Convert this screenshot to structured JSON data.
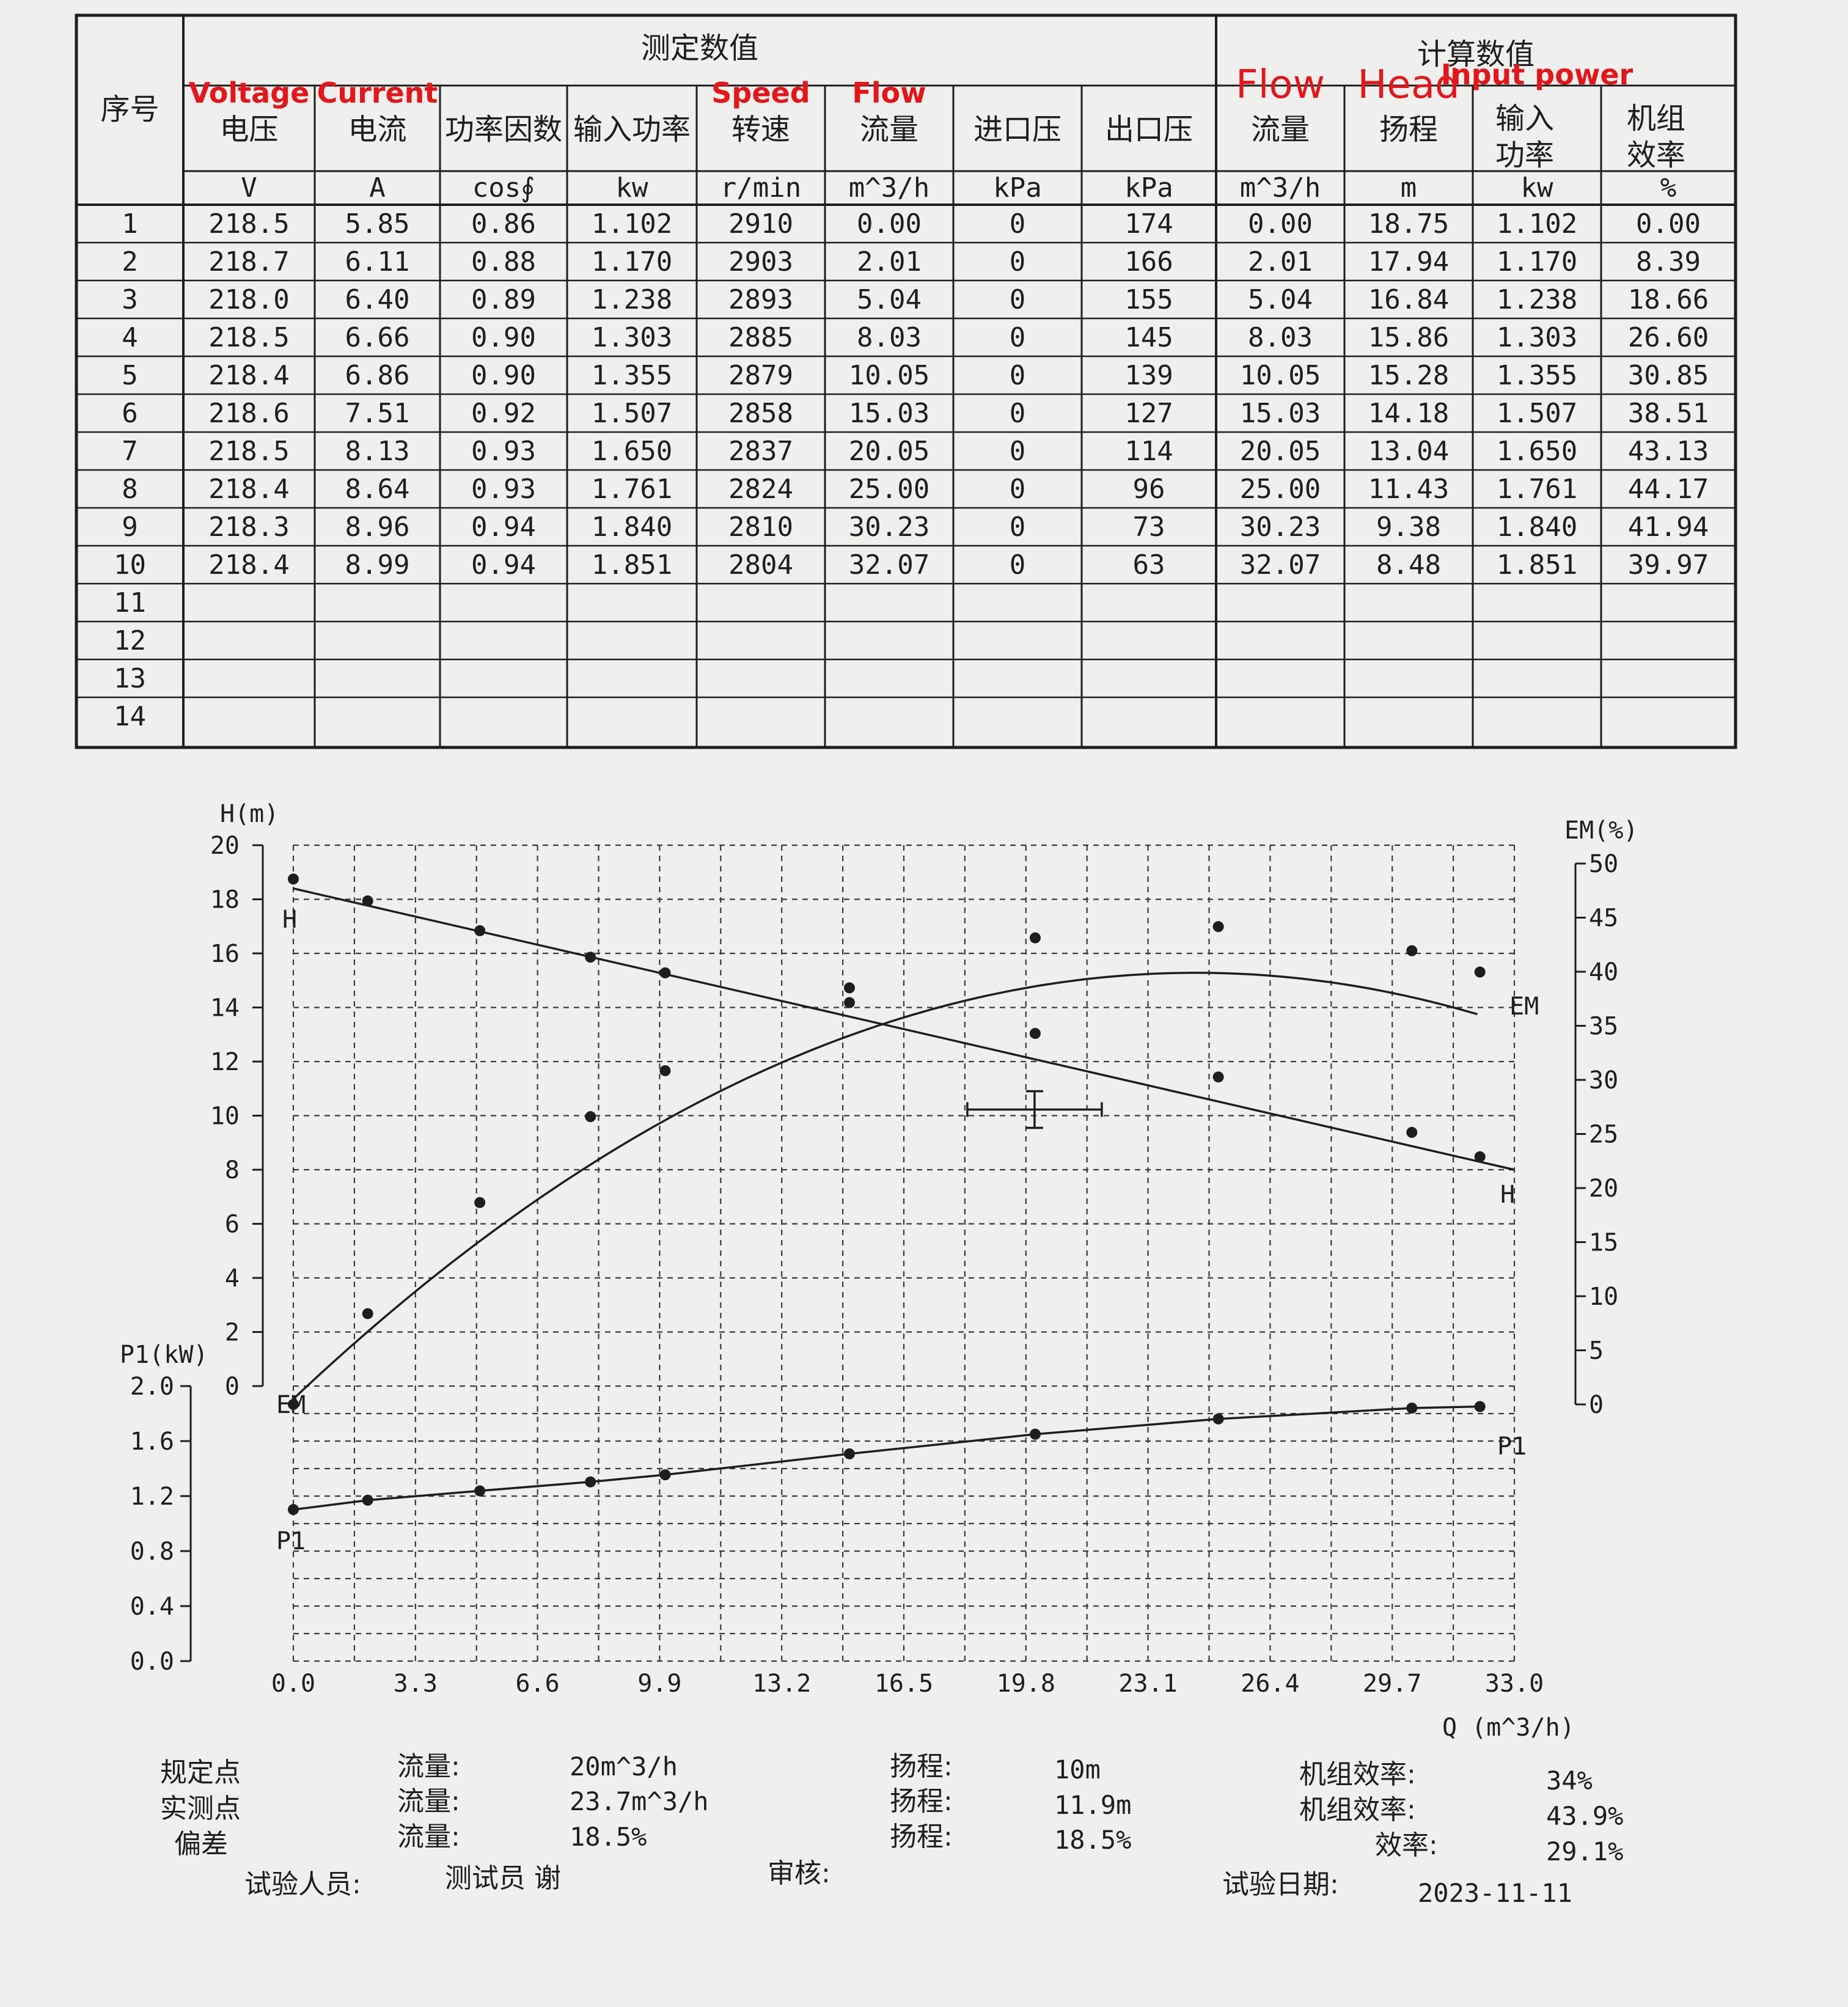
{
  "table": {
    "seq_header": "序号",
    "group_measured": "测定数值",
    "group_calculated": "计算数值",
    "columns": [
      {
        "label": "电压",
        "unit": "V",
        "annotation": "Voltage"
      },
      {
        "label": "电流",
        "unit": "A",
        "annotation": "Current"
      },
      {
        "label": "功率因数",
        "unit": "cos∮",
        "annotation": ""
      },
      {
        "label": "输入功率",
        "unit": "kw",
        "annotation": ""
      },
      {
        "label": "转速",
        "unit": "r/min",
        "annotation": "Speed"
      },
      {
        "label": "流量",
        "unit": "m^3/h",
        "annotation": "Flow"
      },
      {
        "label": "进口压",
        "unit": "kPa",
        "annotation": ""
      },
      {
        "label": "出口压",
        "unit": "kPa",
        "annotation": ""
      },
      {
        "label": "流量",
        "unit": "m^3/h",
        "annotation": "Flow"
      },
      {
        "label": "扬程",
        "unit": "m",
        "annotation": "Head"
      },
      {
        "label": "输入\n功率",
        "unit": "kw",
        "annotation": "Input power"
      },
      {
        "label": "机组\n效率",
        "unit": "%",
        "annotation": ""
      }
    ],
    "rows": [
      [
        "1",
        "218.5",
        "5.85",
        "0.86",
        "1.102",
        "2910",
        "0.00",
        "0",
        "174",
        "0.00",
        "18.75",
        "1.102",
        "0.00"
      ],
      [
        "2",
        "218.7",
        "6.11",
        "0.88",
        "1.170",
        "2903",
        "2.01",
        "0",
        "166",
        "2.01",
        "17.94",
        "1.170",
        "8.39"
      ],
      [
        "3",
        "218.0",
        "6.40",
        "0.89",
        "1.238",
        "2893",
        "5.04",
        "0",
        "155",
        "5.04",
        "16.84",
        "1.238",
        "18.66"
      ],
      [
        "4",
        "218.5",
        "6.66",
        "0.90",
        "1.303",
        "2885",
        "8.03",
        "0",
        "145",
        "8.03",
        "15.86",
        "1.303",
        "26.60"
      ],
      [
        "5",
        "218.4",
        "6.86",
        "0.90",
        "1.355",
        "2879",
        "10.05",
        "0",
        "139",
        "10.05",
        "15.28",
        "1.355",
        "30.85"
      ],
      [
        "6",
        "218.6",
        "7.51",
        "0.92",
        "1.507",
        "2858",
        "15.03",
        "0",
        "127",
        "15.03",
        "14.18",
        "1.507",
        "38.51"
      ],
      [
        "7",
        "218.5",
        "8.13",
        "0.93",
        "1.650",
        "2837",
        "20.05",
        "0",
        "114",
        "20.05",
        "13.04",
        "1.650",
        "43.13"
      ],
      [
        "8",
        "218.4",
        "8.64",
        "0.93",
        "1.761",
        "2824",
        "25.00",
        "0",
        "96",
        "25.00",
        "11.43",
        "1.761",
        "44.17"
      ],
      [
        "9",
        "218.3",
        "8.96",
        "0.94",
        "1.840",
        "2810",
        "30.23",
        "0",
        "73",
        "30.23",
        "9.38",
        "1.840",
        "41.94"
      ],
      [
        "10",
        "218.4",
        "8.99",
        "0.94",
        "1.851",
        "2804",
        "32.07",
        "0",
        "63",
        "32.07",
        "8.48",
        "1.851",
        "39.97"
      ],
      [
        "11",
        "",
        "",
        "",
        "",
        "",
        "",
        "",
        "",
        "",
        "",
        "",
        ""
      ],
      [
        "12",
        "",
        "",
        "",
        "",
        "",
        "",
        "",
        "",
        "",
        "",
        "",
        ""
      ],
      [
        "13",
        "",
        "",
        "",
        "",
        "",
        "",
        "",
        "",
        "",
        "",
        "",
        ""
      ],
      [
        "14",
        "",
        "",
        "",
        "",
        "",
        "",
        "",
        "",
        "",
        "",
        "",
        ""
      ]
    ]
  },
  "chart_data": {
    "type": "line",
    "xlabel": "Q (m^3/h)",
    "x_ticks": [
      "0.0",
      "3.3",
      "6.6",
      "9.9",
      "13.2",
      "16.5",
      "19.8",
      "23.1",
      "26.4",
      "29.7",
      "33.0"
    ],
    "xlim": [
      0,
      33
    ],
    "y_head_label": "H(m)",
    "y_head_ticks": [
      "20",
      "18",
      "16",
      "14",
      "12",
      "10",
      "8",
      "6",
      "4",
      "2",
      "0"
    ],
    "y_head_lim": [
      0,
      20
    ],
    "y_eff_label": "EM(%)",
    "y_eff_ticks": [
      "50",
      "45",
      "40",
      "35",
      "30",
      "25",
      "20",
      "15",
      "10",
      "5",
      "0"
    ],
    "y_eff_lim": [
      0,
      50
    ],
    "y_power_label": "P1(kW)",
    "y_power_ticks": [
      "2.0",
      "1.6",
      "1.2",
      "0.8",
      "0.4",
      "0.0"
    ],
    "y_power_lim": [
      0,
      2
    ],
    "grid": true,
    "series": [
      {
        "name": "H",
        "axis": "head",
        "x": [
          0.0,
          2.01,
          5.04,
          8.03,
          10.05,
          15.03,
          20.05,
          25.0,
          30.23,
          32.07
        ],
        "values": [
          18.75,
          17.94,
          16.84,
          15.86,
          15.28,
          14.18,
          13.04,
          11.43,
          9.38,
          8.48
        ],
        "fit": [
          [
            0,
            18.4
          ],
          [
            33,
            8.0
          ]
        ]
      },
      {
        "name": "EM",
        "axis": "efficiency",
        "x": [
          0.0,
          2.01,
          5.04,
          8.03,
          10.05,
          15.03,
          20.05,
          25.0,
          30.23,
          32.07
        ],
        "values": [
          0.0,
          8.39,
          18.66,
          26.6,
          30.85,
          38.51,
          43.13,
          44.17,
          41.94,
          39.97
        ]
      },
      {
        "name": "P1",
        "axis": "power",
        "x": [
          0.0,
          2.01,
          5.04,
          8.03,
          10.05,
          15.03,
          20.05,
          25.0,
          30.23,
          32.07
        ],
        "values": [
          1.102,
          1.17,
          1.238,
          1.303,
          1.355,
          1.507,
          1.65,
          1.761,
          1.84,
          1.851
        ]
      }
    ],
    "duty_point": {
      "q": 20,
      "h": 10
    }
  },
  "footer": {
    "rows": [
      {
        "label": "规定点",
        "flow_label": "流量:",
        "flow": "20m^3/h",
        "head_label": "扬程:",
        "head": "10m",
        "eff_label": "机组效率:",
        "eff": "34%"
      },
      {
        "label": "实测点",
        "flow_label": "流量:",
        "flow": "23.7m^3/h",
        "head_label": "扬程:",
        "head": "11.9m",
        "eff_label": "机组效率:",
        "eff": "43.9%"
      },
      {
        "label": "偏差",
        "flow_label": "流量:",
        "flow": "18.5%",
        "head_label": "扬程:",
        "head": "18.5%",
        "eff_label": "效率:",
        "eff": "29.1%"
      }
    ],
    "tester_label": "试验人员:",
    "tester": "测试员 谢",
    "reviewer_label": "审核:",
    "date_label": "试验日期:",
    "date": "2023-11-11"
  }
}
